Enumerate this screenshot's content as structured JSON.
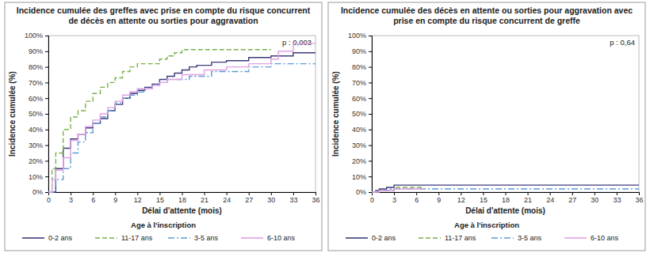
{
  "chart_data": [
    {
      "type": "line",
      "title": "Incidence cumulée des greffes avec prise en compte du risque concurrent de décès en attente ou sorties pour aggravation",
      "xlabel": "Délai d'attente (mois)",
      "ylabel": "Incidence cumulée (%)",
      "annotation": "p : 0,003",
      "legend": "bottom",
      "legend_title": "Age à l'inscription",
      "xlim": [
        0,
        36
      ],
      "xticks": [
        0,
        3,
        6,
        9,
        12,
        15,
        18,
        21,
        24,
        27,
        30,
        33,
        36
      ],
      "ylim": [
        0,
        100
      ],
      "yticks": [
        {
          "value": 0,
          "label": "0%"
        },
        {
          "value": 10,
          "label": "10%"
        },
        {
          "value": 20,
          "label": "20%"
        },
        {
          "value": 30,
          "label": "30%"
        },
        {
          "value": 40,
          "label": "40%"
        },
        {
          "value": 50,
          "label": "50%"
        },
        {
          "value": 60,
          "label": "60%"
        },
        {
          "value": 70,
          "label": "70%"
        },
        {
          "value": 80,
          "label": "80%"
        },
        {
          "value": 90,
          "label": "90%"
        },
        {
          "value": 100,
          "label": "100%"
        }
      ],
      "series": [
        {
          "name": "0-2 ans",
          "color": "#3b3b7c",
          "line_style": "solid",
          "x": [
            0,
            1,
            2,
            3,
            4,
            5,
            6,
            7,
            8,
            9,
            10,
            11,
            12,
            13,
            14,
            15,
            16,
            17,
            18,
            19,
            20,
            22,
            24,
            27,
            30,
            33,
            36
          ],
          "values": [
            0,
            15,
            28,
            34,
            37,
            41,
            44,
            47,
            52,
            56,
            60,
            63,
            65,
            67,
            69,
            72,
            74,
            76,
            78,
            80,
            81,
            83,
            84,
            86,
            87,
            89,
            89
          ]
        },
        {
          "name": "11-17 ans",
          "color": "#78b04a",
          "line_style": "dashed",
          "x": [
            0,
            0.5,
            1,
            2,
            3,
            4,
            5,
            6,
            7,
            8,
            9,
            10,
            11,
            12,
            15,
            16,
            17,
            18,
            30
          ],
          "values": [
            0,
            15,
            25,
            40,
            48,
            52,
            58,
            63,
            67,
            70,
            73,
            77,
            80,
            82,
            85,
            87,
            89,
            91,
            91
          ]
        },
        {
          "name": "3-5 ans",
          "color": "#5b9bd5",
          "line_style": "dashdot",
          "x": [
            0,
            1,
            2,
            3,
            4,
            5,
            6,
            7,
            8,
            9,
            10,
            11,
            12,
            13,
            14,
            15,
            16,
            19,
            22,
            27,
            30,
            36
          ],
          "values": [
            0,
            8,
            15,
            25,
            32,
            38,
            44,
            48,
            52,
            57,
            60,
            62,
            64,
            66,
            68,
            70,
            72,
            74,
            77,
            80,
            82,
            82
          ]
        },
        {
          "name": "6-10 ans",
          "color": "#e2a0e2",
          "line_style": "solid",
          "x": [
            0,
            0.5,
            1,
            2,
            3,
            4,
            5,
            6,
            7,
            8,
            9,
            10,
            11,
            12,
            14,
            15,
            16,
            18,
            21,
            24,
            27,
            30,
            31,
            33,
            36
          ],
          "values": [
            0,
            8,
            14,
            22,
            33,
            37,
            42,
            46,
            50,
            54,
            58,
            62,
            64,
            66,
            68,
            70,
            72,
            75,
            78,
            80,
            82,
            85,
            90,
            95,
            95
          ]
        }
      ]
    },
    {
      "type": "line",
      "title": "Incidence cumulée des décès en attente ou sorties pour aggravation avec prise en compte du risque concurrent de greffe",
      "xlabel": "Délai d'attente (mois)",
      "ylabel": "Incidence cumulée (%)",
      "annotation": "p : 0,64",
      "legend": "bottom",
      "legend_title": "Age à l'inscription",
      "xlim": [
        0,
        36
      ],
      "xticks": [
        0,
        3,
        6,
        9,
        12,
        15,
        18,
        21,
        24,
        27,
        30,
        33,
        36
      ],
      "ylim": [
        0,
        100
      ],
      "yticks": [
        {
          "value": 0,
          "label": "0%"
        },
        {
          "value": 10,
          "label": "10%"
        },
        {
          "value": 20,
          "label": "20%"
        },
        {
          "value": 30,
          "label": "30%"
        },
        {
          "value": 40,
          "label": "40%"
        },
        {
          "value": 50,
          "label": "50%"
        },
        {
          "value": 60,
          "label": "60%"
        },
        {
          "value": 70,
          "label": "70%"
        },
        {
          "value": 80,
          "label": "80%"
        },
        {
          "value": 90,
          "label": "90%"
        },
        {
          "value": 100,
          "label": "100%"
        }
      ],
      "series": [
        {
          "name": "0-2 ans",
          "color": "#3b3b7c",
          "line_style": "solid",
          "x": [
            0,
            0.5,
            1,
            2,
            3,
            36
          ],
          "values": [
            0,
            1,
            2,
            3,
            4.5,
            4.5
          ]
        },
        {
          "name": "11-17 ans",
          "color": "#78b04a",
          "line_style": "dashed",
          "x": [
            0,
            1,
            3,
            7
          ],
          "values": [
            0,
            1,
            3,
            3
          ]
        },
        {
          "name": "3-5 ans",
          "color": "#5b9bd5",
          "line_style": "dashdot",
          "x": [
            0,
            0.5,
            2.5,
            36
          ],
          "values": [
            0,
            1,
            2,
            2
          ]
        },
        {
          "name": "6-10 ans",
          "color": "#e2a0e2",
          "line_style": "solid",
          "x": [
            0,
            1,
            3,
            7
          ],
          "values": [
            0,
            1,
            2,
            2
          ]
        }
      ]
    }
  ]
}
